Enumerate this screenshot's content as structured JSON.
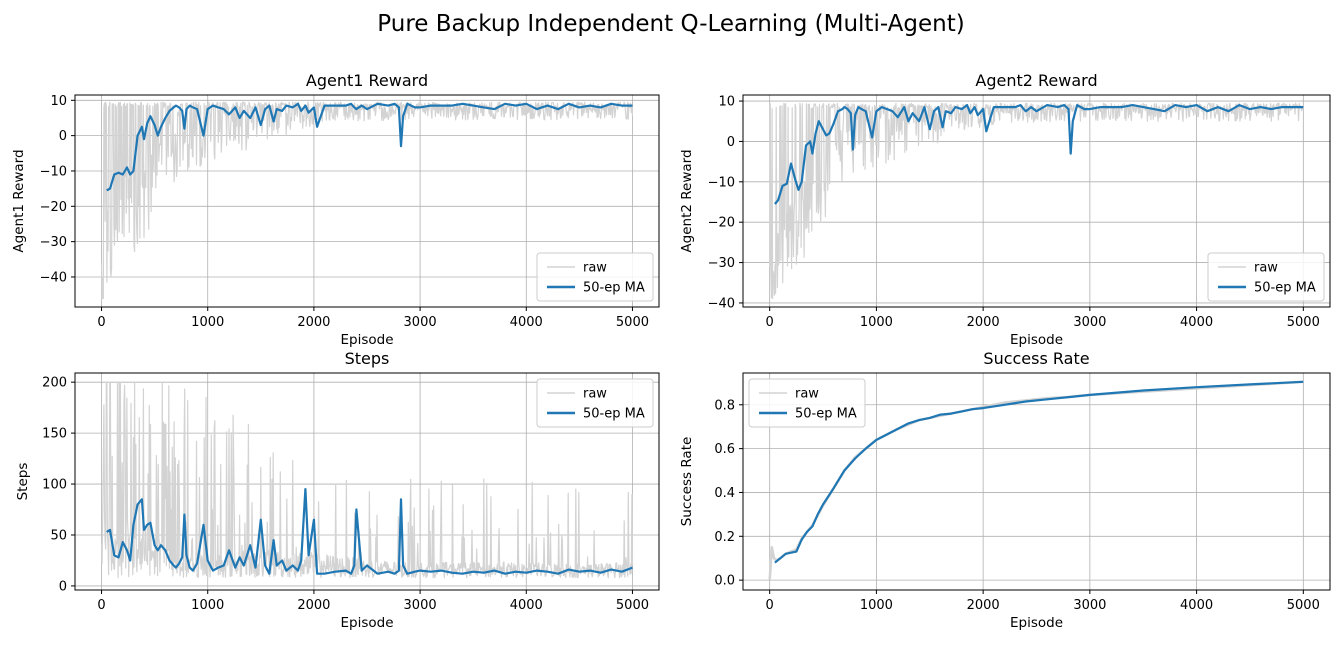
{
  "figure": {
    "suptitle": "Pure Backup Independent Q-Learning (Multi-Agent)",
    "colors": {
      "raw": "#d3d3d3",
      "ma": "#1f77b4"
    }
  },
  "chart_data": [
    {
      "type": "line",
      "title": "Agent1 Reward",
      "xlabel": "Episode",
      "ylabel": "Agent1 Reward",
      "xlim": [
        -250,
        5250
      ],
      "ylim": [
        -48.5,
        11.5
      ],
      "xticks": [
        0,
        1000,
        2000,
        3000,
        4000,
        5000
      ],
      "yticks": [
        -40,
        -30,
        -20,
        -10,
        0,
        10
      ],
      "grid": true,
      "legend": "lower-right",
      "series": [
        {
          "name": "raw",
          "color": "#d3d3d3",
          "style": "noisy",
          "x": [
            0,
            50,
            100,
            150,
            200,
            300,
            400,
            500,
            600,
            700,
            800,
            1000,
            1500,
            2000,
            3000,
            4000,
            5000
          ],
          "y": [
            -28,
            -20,
            -18,
            -15,
            -12,
            -10,
            -8,
            -3,
            3,
            7,
            8,
            8,
            8,
            8,
            8.5,
            8.5,
            8.5
          ]
        },
        {
          "name": "50-ep MA",
          "color": "#1f77b4",
          "style": "line",
          "x": [
            49,
            80,
            120,
            160,
            200,
            240,
            270,
            300,
            340,
            380,
            400,
            430,
            460,
            500,
            530,
            560,
            600,
            640,
            680,
            700,
            730,
            760,
            780,
            800,
            830,
            860,
            900,
            960,
            1000,
            1050,
            1100,
            1150,
            1200,
            1260,
            1300,
            1340,
            1400,
            1450,
            1500,
            1540,
            1580,
            1620,
            1650,
            1700,
            1740,
            1800,
            1850,
            1880,
            1920,
            1950,
            2000,
            2030,
            2100,
            2200,
            2300,
            2350,
            2380,
            2400,
            2450,
            2500,
            2600,
            2700,
            2760,
            2800,
            2820,
            2840,
            2880,
            2950,
            3000,
            3100,
            3200,
            3300,
            3400,
            3500,
            3600,
            3700,
            3800,
            3900,
            4000,
            4100,
            4200,
            4300,
            4400,
            4500,
            4600,
            4700,
            4800,
            4900,
            5000
          ],
          "y": [
            -15.5,
            -15,
            -11,
            -10.5,
            -11,
            -9,
            -11,
            -10,
            0,
            2.5,
            -1,
            3.5,
            5.5,
            3,
            0,
            2.5,
            5,
            7,
            8,
            8.5,
            8,
            7,
            2,
            7.5,
            8.5,
            8,
            7.5,
            0,
            7.5,
            8.5,
            8,
            7.5,
            6,
            8,
            5,
            7,
            5,
            8,
            3,
            7.5,
            8.5,
            4,
            7.5,
            7,
            8.5,
            8,
            9,
            7,
            8.5,
            6.5,
            8,
            2.5,
            8.5,
            8.5,
            8.5,
            9,
            8,
            7.5,
            8.5,
            7.5,
            9,
            8.5,
            9,
            8,
            -3,
            5.5,
            9,
            8,
            8,
            8.5,
            8.5,
            8.5,
            9,
            8.5,
            8,
            7.5,
            9,
            8.5,
            9,
            7.5,
            8.5,
            7.5,
            9,
            8,
            8.5,
            8,
            9,
            8.5,
            8.5
          ]
        }
      ]
    },
    {
      "type": "line",
      "title": "Agent2 Reward",
      "xlabel": "Episode",
      "ylabel": "Agent2 Reward",
      "xlim": [
        -250,
        5250
      ],
      "ylim": [
        -41,
        11.5
      ],
      "xticks": [
        0,
        1000,
        2000,
        3000,
        4000,
        5000
      ],
      "yticks": [
        -40,
        -30,
        -20,
        -10,
        0,
        10
      ],
      "grid": true,
      "legend": "lower-right",
      "series": [
        {
          "name": "raw",
          "color": "#d3d3d3",
          "style": "noisy",
          "x": [
            0,
            50,
            100,
            150,
            200,
            300,
            400,
            500,
            600,
            700,
            800,
            1000,
            1500,
            2000,
            3000,
            4000,
            5000
          ],
          "y": [
            -25,
            -20,
            -18,
            -15,
            -12,
            -10,
            -8,
            -3,
            3,
            7,
            8,
            8,
            8,
            8,
            8.5,
            8.5,
            8.5
          ]
        },
        {
          "name": "50-ep MA",
          "color": "#1f77b4",
          "style": "line",
          "x": [
            49,
            80,
            120,
            160,
            200,
            240,
            270,
            300,
            340,
            380,
            400,
            430,
            460,
            500,
            530,
            560,
            600,
            640,
            680,
            700,
            730,
            760,
            780,
            800,
            830,
            860,
            900,
            960,
            1000,
            1050,
            1100,
            1150,
            1200,
            1260,
            1300,
            1340,
            1400,
            1450,
            1500,
            1540,
            1580,
            1620,
            1650,
            1700,
            1740,
            1800,
            1850,
            1880,
            1920,
            1950,
            2000,
            2030,
            2100,
            2200,
            2300,
            2350,
            2380,
            2400,
            2450,
            2500,
            2600,
            2700,
            2760,
            2800,
            2820,
            2840,
            2880,
            2950,
            3000,
            3100,
            3200,
            3300,
            3400,
            3500,
            3600,
            3700,
            3800,
            3900,
            4000,
            4100,
            4200,
            4300,
            4400,
            4500,
            4600,
            4700,
            4800,
            4900,
            5000
          ],
          "y": [
            -15.5,
            -14.5,
            -11,
            -10.5,
            -5.5,
            -9.5,
            -12,
            -10,
            -1,
            0,
            -3,
            2,
            5,
            3,
            1.5,
            2,
            4.5,
            7.5,
            8,
            8.5,
            8,
            7,
            -2,
            6.5,
            8.5,
            8,
            7.5,
            1,
            7.5,
            8.5,
            8,
            7.5,
            6,
            8.5,
            5,
            7,
            5,
            8.5,
            3,
            7.5,
            8.5,
            3.5,
            7.5,
            7,
            8.5,
            8,
            9,
            7,
            8.5,
            6.5,
            8,
            2.5,
            8.5,
            8.5,
            8.5,
            9,
            8,
            7.5,
            8.5,
            7.5,
            9,
            8.5,
            9,
            8,
            -3,
            5,
            9,
            8,
            8,
            8.5,
            8.5,
            8.5,
            9,
            8.5,
            8,
            7.5,
            9,
            8.5,
            9,
            7.5,
            8.5,
            7.5,
            9,
            8,
            8.5,
            8,
            8.5,
            8.5,
            8.5
          ]
        }
      ]
    },
    {
      "type": "line",
      "title": "Steps",
      "xlabel": "Episode",
      "ylabel": "Steps",
      "xlim": [
        -250,
        5250
      ],
      "ylim": [
        -4,
        209
      ],
      "xticks": [
        0,
        1000,
        2000,
        3000,
        4000,
        5000
      ],
      "yticks": [
        0,
        50,
        100,
        150,
        200
      ],
      "grid": true,
      "legend": "upper-right",
      "series": [
        {
          "name": "raw",
          "color": "#d3d3d3",
          "style": "noisy",
          "x": [
            0,
            50,
            100,
            200,
            300,
            400,
            500,
            600,
            700,
            800,
            1000,
            1500,
            2000,
            2500,
            3000,
            3500,
            4000,
            4500,
            5000
          ],
          "y": [
            40,
            45,
            42,
            40,
            50,
            55,
            50,
            30,
            20,
            18,
            25,
            25,
            25,
            18,
            15,
            15,
            15,
            14,
            15
          ]
        },
        {
          "name": "50-ep MA",
          "color": "#1f77b4",
          "style": "line",
          "x": [
            49,
            80,
            120,
            160,
            200,
            240,
            270,
            300,
            340,
            380,
            400,
            430,
            460,
            500,
            530,
            560,
            600,
            640,
            680,
            700,
            730,
            760,
            780,
            800,
            830,
            860,
            900,
            960,
            1000,
            1050,
            1100,
            1150,
            1200,
            1260,
            1300,
            1340,
            1400,
            1450,
            1500,
            1540,
            1580,
            1620,
            1650,
            1700,
            1740,
            1800,
            1850,
            1880,
            1920,
            1950,
            2000,
            2030,
            2100,
            2200,
            2300,
            2350,
            2380,
            2400,
            2450,
            2500,
            2600,
            2700,
            2760,
            2800,
            2820,
            2840,
            2880,
            2950,
            3000,
            3100,
            3200,
            3300,
            3400,
            3500,
            3600,
            3700,
            3800,
            3900,
            4000,
            4100,
            4200,
            4300,
            4400,
            4500,
            4600,
            4700,
            4800,
            4900,
            5000
          ],
          "y": [
            53,
            55,
            30,
            28,
            43,
            35,
            25,
            60,
            80,
            85,
            55,
            60,
            62,
            40,
            35,
            40,
            35,
            25,
            20,
            18,
            22,
            28,
            70,
            30,
            18,
            15,
            22,
            60,
            25,
            15,
            18,
            20,
            35,
            18,
            28,
            20,
            40,
            18,
            65,
            20,
            12,
            45,
            20,
            25,
            15,
            20,
            15,
            25,
            95,
            30,
            65,
            12,
            12,
            14,
            15,
            12,
            20,
            75,
            15,
            20,
            12,
            14,
            12,
            15,
            85,
            20,
            12,
            14,
            15,
            14,
            15,
            13,
            12,
            14,
            13,
            15,
            12,
            14,
            13,
            15,
            14,
            12,
            16,
            14,
            15,
            13,
            16,
            14,
            18
          ]
        }
      ]
    },
    {
      "type": "line",
      "title": "Success Rate",
      "xlabel": "Episode",
      "ylabel": "Success Rate",
      "xlim": [
        -250,
        5250
      ],
      "ylim": [
        -0.045,
        0.945
      ],
      "xticks": [
        0,
        1000,
        2000,
        3000,
        4000,
        5000
      ],
      "yticks": [
        0.0,
        0.2,
        0.4,
        0.6,
        0.8
      ],
      "grid": true,
      "legend": "upper-left",
      "series": [
        {
          "name": "raw",
          "color": "#d3d3d3",
          "style": "line",
          "x": [
            0,
            20,
            40,
            60,
            100,
            150,
            200,
            250,
            300,
            350,
            400,
            500,
            600,
            700,
            800,
            900,
            1000,
            1200,
            1400,
            1600,
            1800,
            2000,
            2200,
            2400,
            2600,
            2800,
            3000,
            3500,
            4000,
            4500,
            5000
          ],
          "y": [
            0.0,
            0.15,
            0.1,
            0.09,
            0.1,
            0.12,
            0.13,
            0.14,
            0.19,
            0.22,
            0.25,
            0.34,
            0.42,
            0.5,
            0.56,
            0.6,
            0.64,
            0.69,
            0.73,
            0.75,
            0.77,
            0.79,
            0.81,
            0.82,
            0.83,
            0.835,
            0.845,
            0.86,
            0.875,
            0.89,
            0.905
          ]
        },
        {
          "name": "50-ep MA",
          "color": "#1f77b4",
          "style": "line",
          "x": [
            49,
            100,
            150,
            200,
            250,
            300,
            350,
            400,
            450,
            500,
            600,
            700,
            800,
            900,
            1000,
            1100,
            1200,
            1300,
            1400,
            1500,
            1600,
            1700,
            1800,
            1900,
            2000,
            2200,
            2400,
            2600,
            2800,
            3000,
            3500,
            4000,
            4500,
            5000
          ],
          "y": [
            0.08,
            0.1,
            0.12,
            0.125,
            0.13,
            0.185,
            0.22,
            0.245,
            0.3,
            0.345,
            0.42,
            0.5,
            0.555,
            0.6,
            0.64,
            0.665,
            0.69,
            0.715,
            0.73,
            0.74,
            0.755,
            0.76,
            0.77,
            0.78,
            0.785,
            0.8,
            0.815,
            0.825,
            0.835,
            0.845,
            0.865,
            0.88,
            0.893,
            0.905
          ]
        }
      ]
    }
  ]
}
